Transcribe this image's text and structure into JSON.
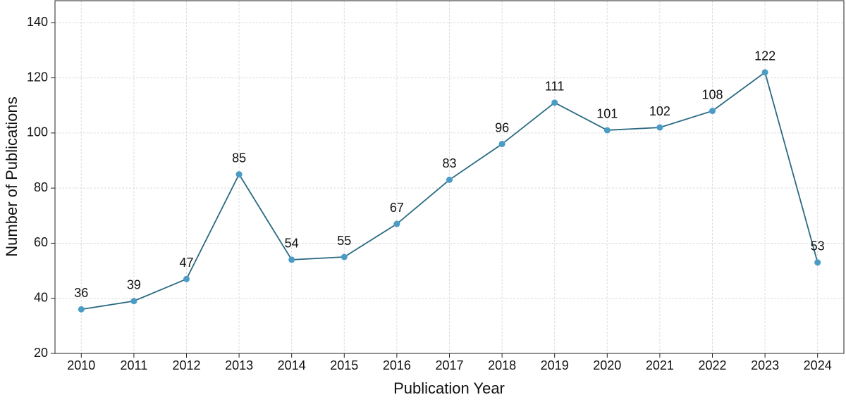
{
  "chart_data": {
    "type": "line",
    "x_label": "Publication Year",
    "y_label": "Number of Publications",
    "x": [
      2010,
      2011,
      2012,
      2013,
      2014,
      2015,
      2016,
      2017,
      2018,
      2019,
      2020,
      2021,
      2022,
      2023,
      2024
    ],
    "series": [
      {
        "color": "#2b6a82",
        "marker_color": "#4a9cc6",
        "values": [
          36,
          39,
          47,
          85,
          54,
          55,
          67,
          83,
          96,
          111,
          101,
          102,
          108,
          122,
          53
        ]
      }
    ],
    "xlim": [
      2009.5,
      2024.5
    ],
    "xticks": [
      2010,
      2011,
      2012,
      2013,
      2014,
      2015,
      2016,
      2017,
      2018,
      2019,
      2020,
      2021,
      2022,
      2023,
      2024
    ],
    "ylim": [
      20,
      148
    ],
    "yticks": [
      20,
      40,
      60,
      80,
      100,
      120,
      140
    ],
    "grid": true
  }
}
